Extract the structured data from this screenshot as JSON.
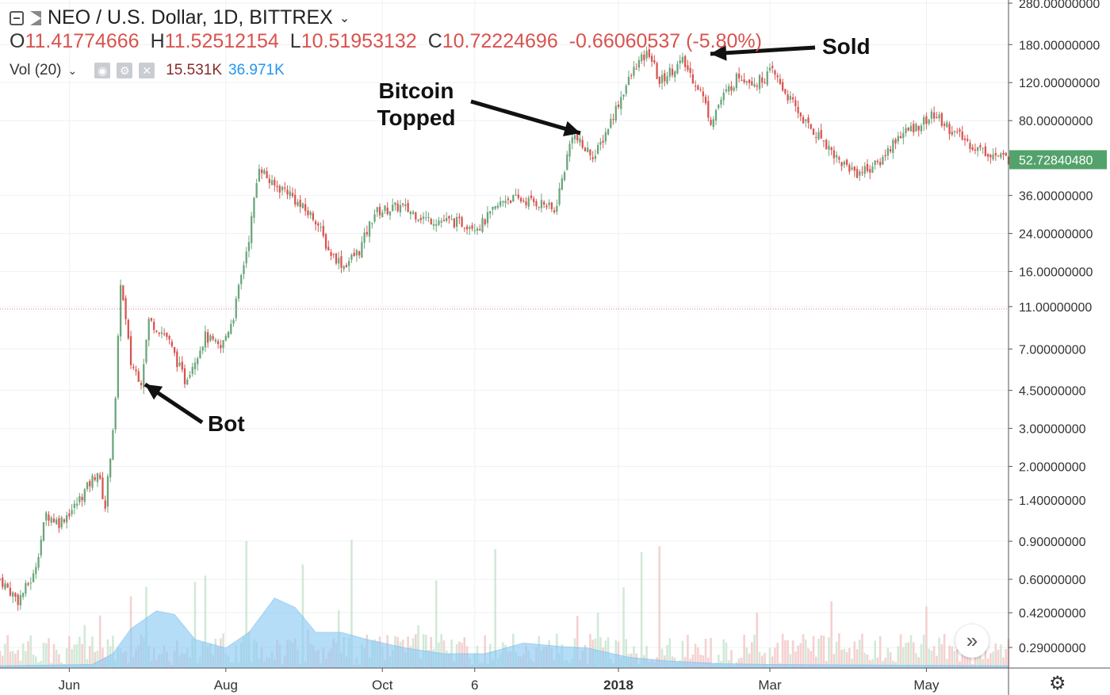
{
  "header": {
    "symbol": "NEO / U.S. Dollar, 1D, BITTREX",
    "chevron": "chevron-down-icon",
    "ohlc": {
      "open_label": "O",
      "open": "11.41774666",
      "high_label": "H",
      "high": "11.52512154",
      "low_label": "L",
      "low": "10.51953132",
      "close_label": "C",
      "close": "10.72224696",
      "change": "-0.66060537 (-5.80%)"
    },
    "volume": {
      "label": "Vol (20)",
      "value1": "15.531K",
      "value2": "36.971K",
      "icons": [
        "eye-icon",
        "gear-icon",
        "close-icon"
      ]
    }
  },
  "annotations": {
    "bot": "Bot",
    "bitcoin_topped_1": "Bitcoin",
    "bitcoin_topped_2": "Topped",
    "sold": "Sold"
  },
  "colors": {
    "up": "#6aa57a",
    "down": "#d9534f",
    "volume_ma": "#8ecbf5",
    "price_label_bg": "#53a26b",
    "hline": "#e08080"
  },
  "chart_data": {
    "type": "candlestick",
    "scale": "log",
    "y_axis_ticks": [
      {
        "value": 280,
        "label": "280.00000000"
      },
      {
        "value": 180,
        "label": "180.00000000"
      },
      {
        "value": 120,
        "label": "120.00000000"
      },
      {
        "value": 80,
        "label": "80.00000000"
      },
      {
        "value": 36,
        "label": "36.00000000"
      },
      {
        "value": 24,
        "label": "24.00000000"
      },
      {
        "value": 16,
        "label": "16.00000000"
      },
      {
        "value": 11,
        "label": "11.00000000"
      },
      {
        "value": 7,
        "label": "7.00000000"
      },
      {
        "value": 4.5,
        "label": "4.50000000"
      },
      {
        "value": 3,
        "label": "3.00000000"
      },
      {
        "value": 2,
        "label": "2.00000000"
      },
      {
        "value": 1.4,
        "label": "1.40000000"
      },
      {
        "value": 0.9,
        "label": "0.90000000"
      },
      {
        "value": 0.6,
        "label": "0.60000000"
      },
      {
        "value": 0.42,
        "label": "0.42000000"
      },
      {
        "value": 0.29,
        "label": "0.29000000"
      }
    ],
    "last_price": {
      "value": 52.7284048,
      "label": "52.72840480"
    },
    "hline": 10.72224696,
    "x_axis_labels": [
      {
        "date": "2017-06-01",
        "label": "Jun",
        "bold": false
      },
      {
        "date": "2017-08-01",
        "label": "Aug",
        "bold": false
      },
      {
        "date": "2017-10-01",
        "label": "Oct",
        "bold": false
      },
      {
        "date": "2017-11-06",
        "label": "6",
        "bold": false
      },
      {
        "date": "2018-01-01",
        "label": "2018",
        "bold": true
      },
      {
        "date": "2018-03-01",
        "label": "Mar",
        "bold": false
      },
      {
        "date": "2018-05-01",
        "label": "May",
        "bold": false
      }
    ],
    "x_range": [
      "2017-05-05",
      "2018-06-02"
    ],
    "close_path": [
      [
        "2017-05-05",
        0.6
      ],
      [
        "2017-05-12",
        0.48
      ],
      [
        "2017-05-18",
        0.62
      ],
      [
        "2017-05-23",
        1.2
      ],
      [
        "2017-05-28",
        1.1
      ],
      [
        "2017-06-03",
        1.3
      ],
      [
        "2017-06-08",
        1.6
      ],
      [
        "2017-06-12",
        1.9
      ],
      [
        "2017-06-15",
        1.3
      ],
      [
        "2017-06-19",
        4.0
      ],
      [
        "2017-06-21",
        14.5
      ],
      [
        "2017-06-25",
        6.0
      ],
      [
        "2017-06-29",
        5.0
      ],
      [
        "2017-07-02",
        9.5
      ],
      [
        "2017-07-09",
        8.0
      ],
      [
        "2017-07-16",
        5.0
      ],
      [
        "2017-07-24",
        8.0
      ],
      [
        "2017-07-30",
        7.0
      ],
      [
        "2017-08-04",
        10.0
      ],
      [
        "2017-08-10",
        23.0
      ],
      [
        "2017-08-14",
        50.0
      ],
      [
        "2017-08-19",
        40.0
      ],
      [
        "2017-08-25",
        38.0
      ],
      [
        "2017-08-30",
        32.0
      ],
      [
        "2017-09-05",
        28.0
      ],
      [
        "2017-09-10",
        20.0
      ],
      [
        "2017-09-16",
        17.0
      ],
      [
        "2017-09-22",
        20.0
      ],
      [
        "2017-09-28",
        30.0
      ],
      [
        "2017-10-08",
        32.0
      ],
      [
        "2017-10-18",
        28.0
      ],
      [
        "2017-10-30",
        27.0
      ],
      [
        "2017-11-08",
        26.0
      ],
      [
        "2017-11-18",
        35.0
      ],
      [
        "2017-11-26",
        34.0
      ],
      [
        "2017-12-03",
        33.0
      ],
      [
        "2017-12-07",
        30.0
      ],
      [
        "2017-12-11",
        48.0
      ],
      [
        "2017-12-14",
        70.0
      ],
      [
        "2017-12-18",
        60.0
      ],
      [
        "2017-12-23",
        55.0
      ],
      [
        "2017-12-28",
        75.0
      ],
      [
        "2018-01-03",
        110.0
      ],
      [
        "2018-01-08",
        145.0
      ],
      [
        "2018-01-13",
        165.0
      ],
      [
        "2018-01-17",
        120.0
      ],
      [
        "2018-01-21",
        135.0
      ],
      [
        "2018-01-26",
        150.0
      ],
      [
        "2018-02-02",
        110.0
      ],
      [
        "2018-02-06",
        80.0
      ],
      [
        "2018-02-10",
        100.0
      ],
      [
        "2018-02-17",
        130.0
      ],
      [
        "2018-02-24",
        120.0
      ],
      [
        "2018-03-02",
        135.0
      ],
      [
        "2018-03-10",
        95.0
      ],
      [
        "2018-03-16",
        75.0
      ],
      [
        "2018-03-22",
        65.0
      ],
      [
        "2018-03-28",
        52.0
      ],
      [
        "2018-04-04",
        46.0
      ],
      [
        "2018-04-12",
        50.0
      ],
      [
        "2018-04-20",
        68.0
      ],
      [
        "2018-04-27",
        75.0
      ],
      [
        "2018-05-04",
        85.0
      ],
      [
        "2018-05-12",
        70.0
      ],
      [
        "2018-05-20",
        60.0
      ],
      [
        "2018-05-28",
        55.0
      ],
      [
        "2018-06-02",
        52.7
      ]
    ],
    "volume_ma_path": [
      [
        "2017-05-05",
        0.03
      ],
      [
        "2017-06-10",
        0.05
      ],
      [
        "2017-06-18",
        0.2
      ],
      [
        "2017-06-25",
        0.55
      ],
      [
        "2017-07-05",
        0.8
      ],
      [
        "2017-07-12",
        0.75
      ],
      [
        "2017-07-20",
        0.4
      ],
      [
        "2017-08-01",
        0.28
      ],
      [
        "2017-08-10",
        0.5
      ],
      [
        "2017-08-20",
        0.98
      ],
      [
        "2017-08-28",
        0.85
      ],
      [
        "2017-09-05",
        0.5
      ],
      [
        "2017-09-15",
        0.5
      ],
      [
        "2017-09-25",
        0.4
      ],
      [
        "2017-10-10",
        0.28
      ],
      [
        "2017-10-25",
        0.2
      ],
      [
        "2017-11-10",
        0.2
      ],
      [
        "2017-11-25",
        0.35
      ],
      [
        "2017-12-10",
        0.3
      ],
      [
        "2017-12-20",
        0.28
      ],
      [
        "2018-01-05",
        0.15
      ],
      [
        "2018-01-20",
        0.1
      ],
      [
        "2018-02-10",
        0.06
      ],
      [
        "2018-03-01",
        0.05
      ],
      [
        "2018-06-02",
        0.03
      ]
    ]
  }
}
